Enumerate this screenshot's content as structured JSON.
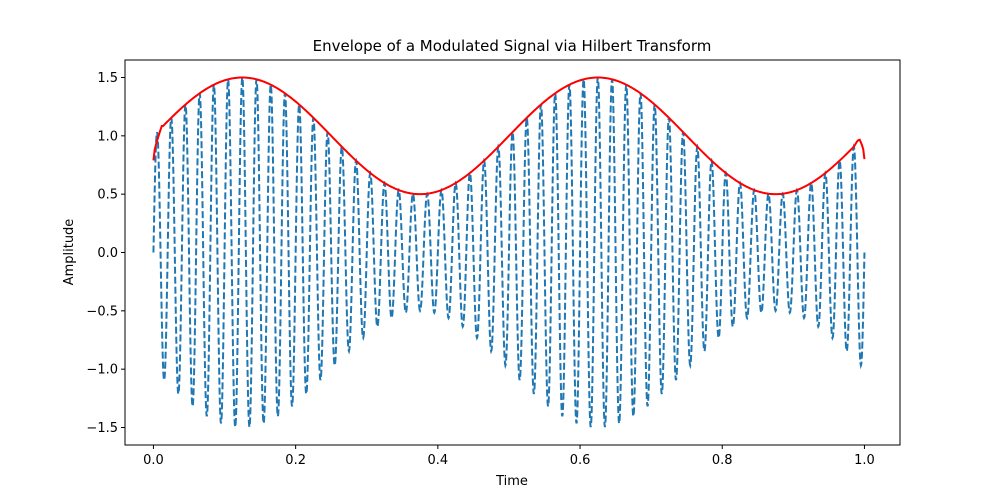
{
  "chart_data": {
    "type": "line",
    "title": "Envelope of a Modulated Signal via Hilbert Transform",
    "xlabel": "Time",
    "ylabel": "Amplitude",
    "xlim": [
      -0.04,
      1.05
    ],
    "ylim": [
      -1.65,
      1.65
    ],
    "xticks": [
      0.0,
      0.2,
      0.4,
      0.6,
      0.8,
      1.0
    ],
    "xtick_labels": [
      "0.0",
      "0.2",
      "0.4",
      "0.6",
      "0.8",
      "1.0"
    ],
    "yticks": [
      -1.5,
      -1.0,
      -0.5,
      0.0,
      0.5,
      1.0,
      1.5
    ],
    "ytick_labels": [
      "−1.5",
      "−1.0",
      "−0.5",
      "0.0",
      "0.5",
      "1.0",
      "1.5"
    ],
    "grid": false,
    "legend": false,
    "series": [
      {
        "style": "dashed",
        "color": "#1f77b4",
        "function": "(1 + 0.5*sin(2*pi*2*t)) * sin(2*pi*50*t)",
        "t_range": [
          0,
          1
        ],
        "carrier_frequency": 50,
        "modulation_frequency": 2,
        "modulation_depth": 0.5
      },
      {
        "style": "solid",
        "color": "#ff0000",
        "function": "1 + 0.5*sin(2*pi*2*t)",
        "t_range": [
          0,
          1
        ],
        "endpoint_values": {
          "start": 0.79,
          "end": 0.8
        }
      }
    ]
  }
}
